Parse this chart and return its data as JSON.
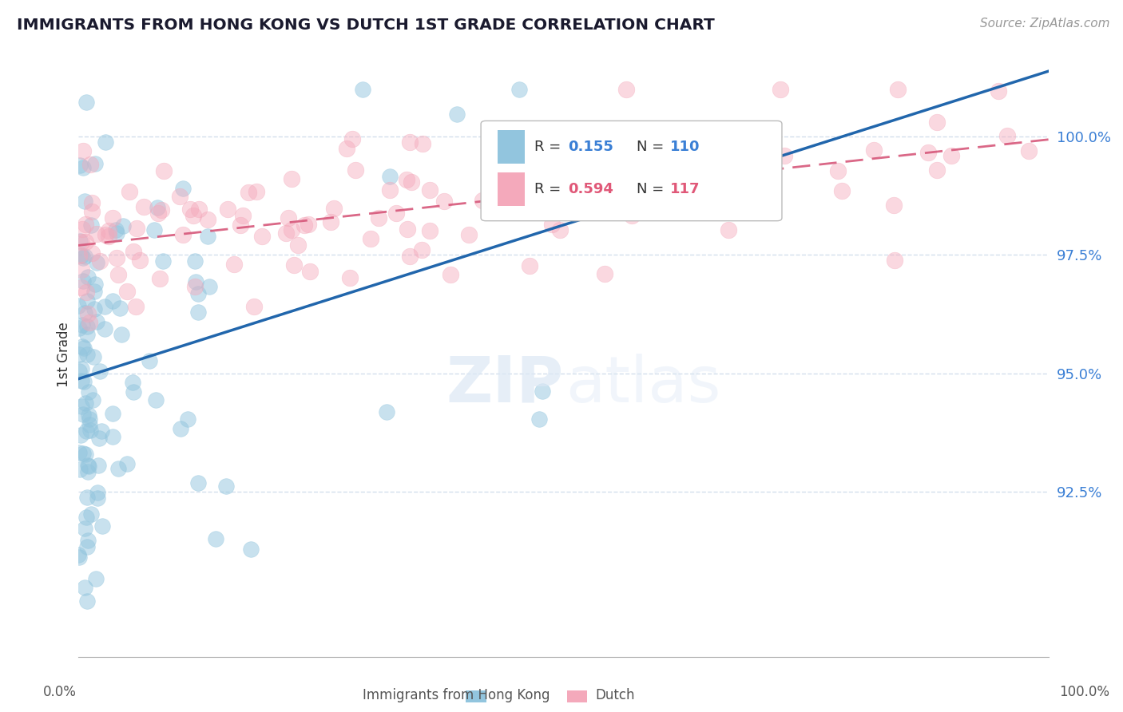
{
  "title": "IMMIGRANTS FROM HONG KONG VS DUTCH 1ST GRADE CORRELATION CHART",
  "source": "Source: ZipAtlas.com",
  "ylabel": "1st Grade",
  "xlim": [
    0.0,
    100.0
  ],
  "ylim": [
    89.0,
    101.8
  ],
  "yticks": [
    92.5,
    95.0,
    97.5,
    100.0
  ],
  "ytick_labels": [
    "92.5%",
    "95.0%",
    "97.5%",
    "100.0%"
  ],
  "hk_R": 0.155,
  "hk_N": 110,
  "dutch_R": 0.594,
  "dutch_N": 117,
  "hk_color": "#92c5de",
  "dutch_color": "#f4a9bb",
  "hk_line_color": "#2166ac",
  "dutch_line_color": "#d6577a",
  "background_color": "#ffffff",
  "grid_color": "#c8d8e8"
}
